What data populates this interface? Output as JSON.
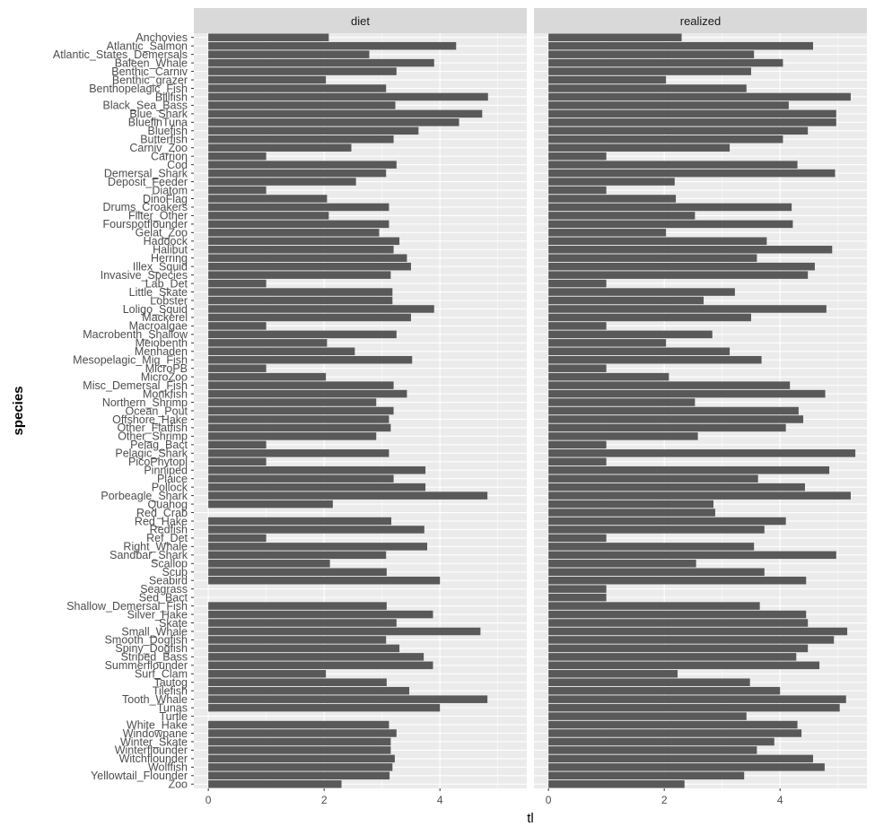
{
  "chart_data": {
    "type": "bar",
    "orientation": "horizontal",
    "xlabel": "tl",
    "ylabel": "species",
    "xlim": [
      -0.25,
      5.5
    ],
    "x_ticks": [
      "0",
      "2",
      "4"
    ],
    "grid": true,
    "legend": "none",
    "facets": [
      "diet",
      "realized"
    ],
    "categories": [
      "Zoo",
      "Yellowtail_Flounder",
      "Wolffish",
      "Witchflounder",
      "Winterflounder",
      "Winter_Skate",
      "Windowpane",
      "White_Hake",
      "Turtle",
      "Tunas",
      "Tooth_Whale",
      "Tilefish",
      "Tautog",
      "Surf_Clam",
      "Summerflounder",
      "Striped_Bass",
      "Spiny_Dogfish",
      "Smooth_Dogfish",
      "Small_Whale",
      "Skate",
      "Silver_Hake",
      "Shallow_Demersal_Fish",
      "Sed_Bact",
      "Seagrass",
      "Seabird",
      "Scup",
      "Scallop",
      "Sandbar_Shark",
      "Right_Whale",
      "Ref_Det",
      "Redfish",
      "Red_Hake",
      "Red_Crab",
      "Quahog",
      "Porbeagle_Shark",
      "Pollock",
      "Plaice",
      "Pinniped",
      "PicoPhytopl",
      "Pelagic_Shark",
      "Pelag_Bact",
      "Other_Shrimp",
      "Other_Flatfish",
      "Offshore_Hake",
      "Ocean_Pout",
      "Northern_Shrimp",
      "Monkfish",
      "Misc_Demersal_Fish",
      "MicroZoo",
      "MicroPB",
      "Mesopelagic_Mig_Fish",
      "Menhaden",
      "Meiobenth",
      "Macrobenth_Shallow",
      "Macroalgae",
      "Mackerel",
      "Loligo_Squid",
      "Lobster",
      "Little_Skate",
      "Lab_Det",
      "Invasive_Species",
      "Illex_Squid",
      "Herring",
      "Halibut",
      "Haddock",
      "Gelat_Zoo",
      "Fourspotflounder",
      "Filter_Other",
      "Drums_Croakers",
      "DinoFlag",
      "Diatom",
      "Deposit_Feeder",
      "Demersal_Shark",
      "Cod",
      "Carrion",
      "Carniv_Zoo",
      "Butterfish",
      "Bluefish",
      "BluefinTuna",
      "Blue_Shark",
      "Black_Sea_Bass",
      "Billfish",
      "Benthopelagic_Fish",
      "Benthic_grazer",
      "Benthic_Carniv",
      "Baleen_Whale",
      "Atlantic_States_Demersals",
      "Atlantic_Salmon",
      "Anchovies"
    ],
    "series": [
      {
        "name": "diet",
        "values": [
          2.3,
          3.13,
          3.18,
          3.22,
          3.15,
          3.15,
          3.25,
          3.12,
          null,
          4.0,
          4.82,
          3.47,
          3.08,
          2.03,
          3.88,
          3.72,
          3.3,
          3.07,
          4.7,
          3.25,
          3.88,
          3.08,
          null,
          null,
          4.0,
          3.08,
          2.1,
          3.07,
          3.78,
          1.0,
          3.73,
          3.16,
          null,
          2.15,
          4.82,
          3.75,
          3.2,
          3.75,
          1.0,
          3.12,
          1.0,
          2.9,
          3.15,
          3.12,
          3.2,
          2.9,
          3.43,
          3.2,
          2.03,
          1.0,
          3.52,
          2.53,
          2.05,
          3.25,
          1.0,
          3.5,
          3.9,
          3.18,
          3.18,
          1.0,
          3.15,
          3.5,
          3.43,
          3.2,
          3.3,
          2.95,
          3.12,
          2.08,
          3.12,
          2.05,
          1.0,
          2.55,
          3.07,
          3.25,
          1.0,
          2.47,
          3.2,
          3.63,
          4.33,
          4.73,
          3.23,
          4.83,
          3.07,
          2.03,
          3.25,
          3.9,
          2.78,
          4.28,
          2.08
        ]
      },
      {
        "name": "realized",
        "values": [
          2.35,
          3.38,
          4.77,
          4.57,
          3.6,
          3.9,
          4.37,
          4.3,
          3.42,
          5.03,
          5.14,
          4.0,
          3.48,
          2.23,
          4.68,
          4.28,
          4.48,
          4.93,
          5.16,
          4.48,
          4.45,
          3.65,
          1.0,
          1.0,
          4.45,
          3.73,
          2.55,
          4.97,
          3.55,
          1.0,
          3.73,
          4.1,
          2.88,
          2.85,
          5.22,
          4.43,
          3.62,
          4.85,
          1.0,
          5.3,
          1.0,
          2.58,
          4.1,
          4.4,
          4.32,
          2.53,
          4.78,
          4.17,
          2.08,
          1.0,
          3.68,
          3.13,
          2.03,
          2.83,
          1.0,
          3.5,
          4.8,
          2.68,
          3.22,
          1.0,
          4.48,
          4.6,
          3.6,
          4.9,
          3.77,
          2.03,
          4.22,
          2.53,
          4.2,
          2.2,
          1.0,
          2.18,
          4.95,
          4.3,
          1.0,
          3.13,
          4.05,
          4.48,
          4.97,
          4.97,
          4.15,
          5.22,
          3.42,
          2.03,
          3.5,
          4.05,
          3.55,
          4.57,
          2.3
        ]
      }
    ]
  }
}
